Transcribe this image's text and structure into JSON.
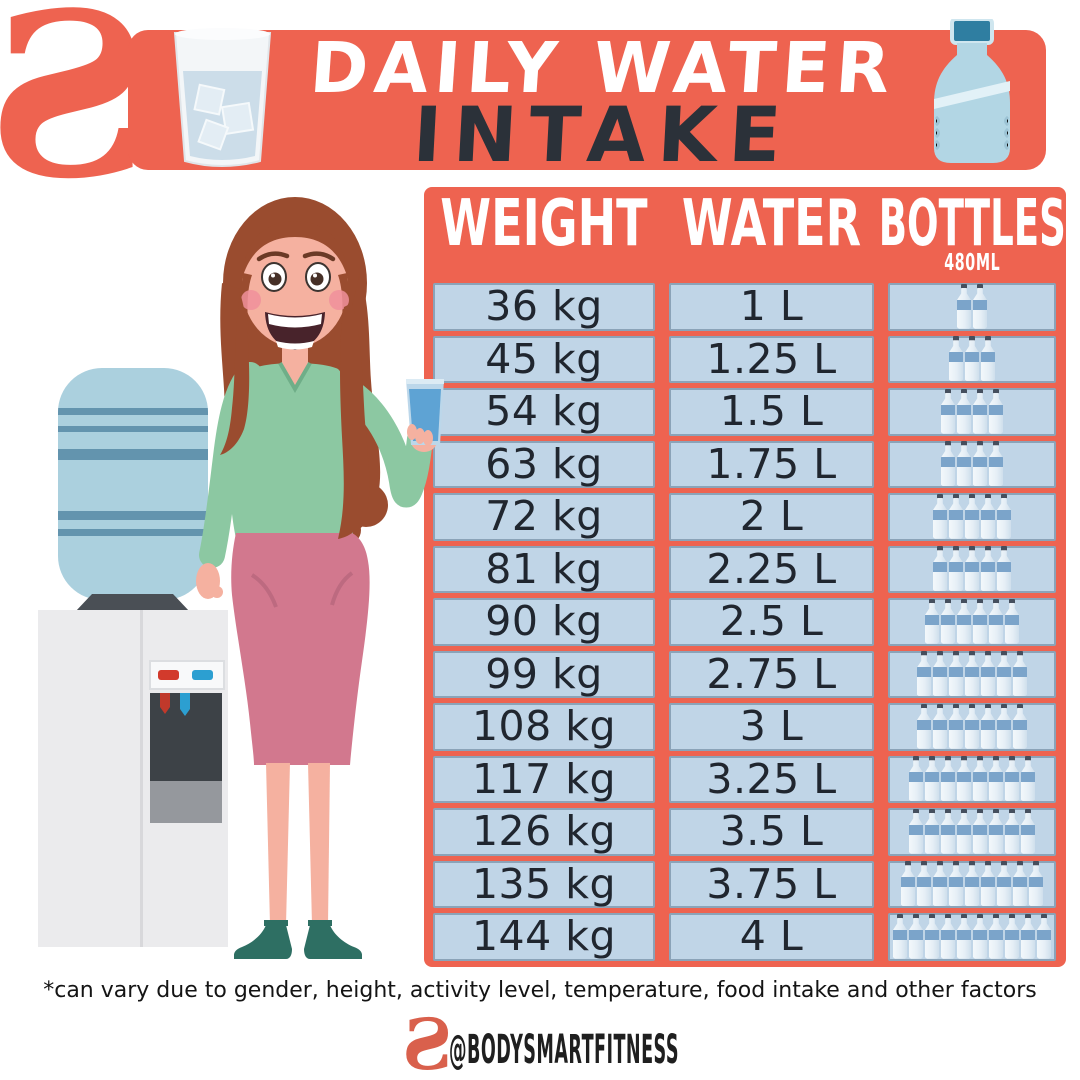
{
  "brand": {
    "logo_glyph": "S",
    "color": "#ee6350"
  },
  "header": {
    "title_line1": "DAILY WATER",
    "title_line2": "INTAKE",
    "left_icon": "water-glass-icon",
    "right_icon": "water-jug-icon"
  },
  "table_labels": {
    "weight": "WEIGHT",
    "water": "WATER",
    "bottles": "BOTTLES",
    "bottles_sub": "480ML"
  },
  "chart_data": {
    "type": "table",
    "title": "DAILY WATER INTAKE",
    "columns": [
      "WEIGHT",
      "WATER",
      "BOTTLES 480ML"
    ],
    "bottle_unit": "480ML",
    "rows": [
      {
        "weight": "36 kg",
        "water": "1 L",
        "bottles": 2
      },
      {
        "weight": "45 kg",
        "water": "1.25 L",
        "bottles": 3
      },
      {
        "weight": "54 kg",
        "water": "1.5 L",
        "bottles": 4
      },
      {
        "weight": "63 kg",
        "water": "1.75 L",
        "bottles": 4
      },
      {
        "weight": "72 kg",
        "water": "2 L",
        "bottles": 5
      },
      {
        "weight": "81 kg",
        "water": "2.25 L",
        "bottles": 5
      },
      {
        "weight": "90 kg",
        "water": "2.5 L",
        "bottles": 6
      },
      {
        "weight": "99 kg",
        "water": "2.75 L",
        "bottles": 7
      },
      {
        "weight": "108 kg",
        "water": "3 L",
        "bottles": 7
      },
      {
        "weight": "117 kg",
        "water": "3.25 L",
        "bottles": 8
      },
      {
        "weight": "126 kg",
        "water": "3.5 L",
        "bottles": 8
      },
      {
        "weight": "135 kg",
        "water": "3.75 L",
        "bottles": 9
      },
      {
        "weight": "144 kg",
        "water": "4 L",
        "bottles": 10
      }
    ]
  },
  "footer": {
    "note": "*can vary due to gender, height, activity level, temperature, food intake and other factors",
    "handle": "@BODYSMARTFITNESS"
  },
  "colors": {
    "coral": "#ee6350",
    "cell_blue": "#c0d5e7",
    "ink": "#20262f",
    "bottle_label_blue": "#7ba4ca"
  }
}
